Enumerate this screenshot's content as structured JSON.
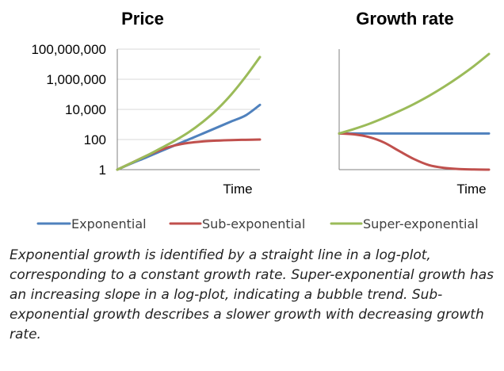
{
  "colors": {
    "exponential": "#4f81bd",
    "sub_exponential": "#c0504d",
    "super_exponential": "#9bbb59"
  },
  "legend": [
    {
      "key": "exponential",
      "label": "Exponential"
    },
    {
      "key": "sub_exponential",
      "label": "Sub-exponential"
    },
    {
      "key": "super_exponential",
      "label": "Super-exponential"
    }
  ],
  "caption": "Exponential growth is identified by a straight line in a log-plot, corresponding to a constant growth rate. Super-exponential growth has an increasing slope in a log-plot, indicating a bubble trend. Sub-exponential growth describes a slower growth with decreasing growth rate.",
  "chart_data": [
    {
      "type": "line",
      "title": "Price",
      "xlabel": "Time",
      "ylabel": "",
      "yscale": "log",
      "ylim": [
        1,
        100000000
      ],
      "yticks": [
        1,
        100,
        10000,
        1000000,
        100000000
      ],
      "ytick_labels": [
        "1",
        "100",
        "10,000",
        "1,000,000",
        "100,000,000"
      ],
      "grid": true,
      "legend": "bottom",
      "x": [
        0,
        1,
        2,
        3,
        4,
        5,
        6,
        7,
        8,
        9,
        10
      ],
      "series": [
        {
          "name": "Exponential",
          "key": "exponential",
          "values": [
            1,
            2.6,
            6.3,
            16,
            40,
            100,
            250,
            630,
            1600,
            4000,
            20000
          ]
        },
        {
          "name": "Sub-exponential",
          "key": "sub_exponential",
          "values": [
            1,
            2.8,
            8,
            20,
            40,
            60,
            75,
            85,
            92,
            96,
            100
          ]
        },
        {
          "name": "Super-exponential",
          "key": "super_exponential",
          "values": [
            1,
            2.8,
            8,
            25,
            80,
            300,
            1500,
            10000,
            100000,
            1500000,
            30000000
          ]
        }
      ]
    },
    {
      "type": "line",
      "title": "Growth rate",
      "xlabel": "Time",
      "ylabel": "",
      "ylim": [
        0,
        4
      ],
      "grid": false,
      "legend": "bottom",
      "x": [
        0,
        1,
        2,
        3,
        4,
        5,
        6,
        7,
        8,
        9,
        10
      ],
      "series": [
        {
          "name": "Exponential",
          "key": "exponential",
          "values": [
            1.2,
            1.2,
            1.2,
            1.2,
            1.2,
            1.2,
            1.2,
            1.2,
            1.2,
            1.2,
            1.2
          ]
        },
        {
          "name": "Sub-exponential",
          "key": "sub_exponential",
          "values": [
            1.2,
            1.17,
            1.08,
            0.9,
            0.62,
            0.35,
            0.15,
            0.06,
            0.02,
            0.005,
            0
          ]
        },
        {
          "name": "Super-exponential",
          "key": "super_exponential",
          "values": [
            1.2,
            1.35,
            1.52,
            1.72,
            1.94,
            2.18,
            2.45,
            2.75,
            3.08,
            3.44,
            3.84
          ]
        }
      ]
    }
  ]
}
